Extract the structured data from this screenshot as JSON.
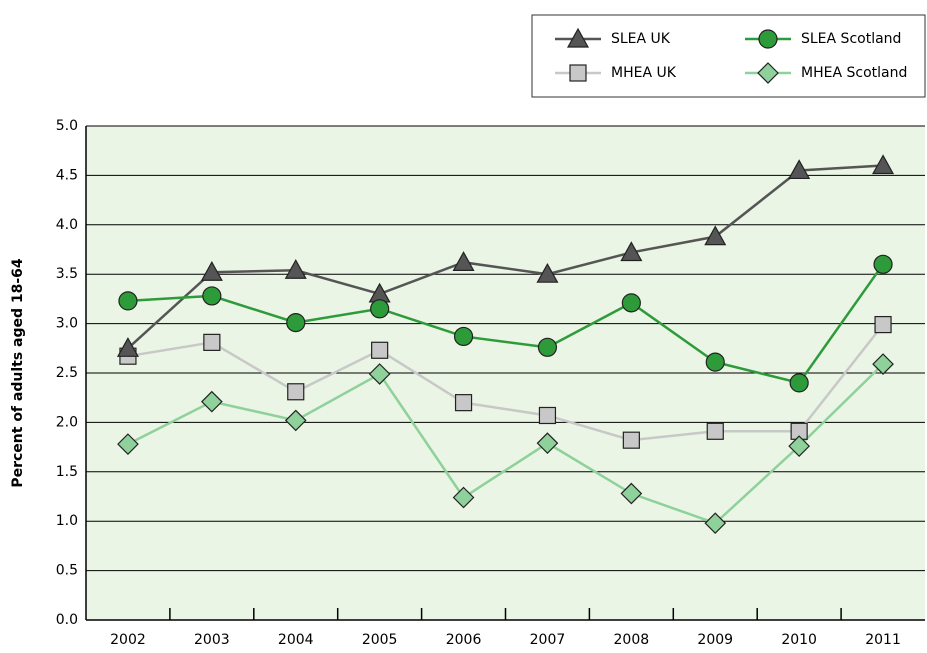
{
  "chart_data": {
    "type": "line",
    "y_label": "Percent of adults aged 18-64",
    "categories": [
      "2002",
      "2003",
      "2004",
      "2005",
      "2006",
      "2007",
      "2008",
      "2009",
      "2010",
      "2011"
    ],
    "series": [
      {
        "name": "SLEA UK",
        "color": "#555555",
        "marker": "triangle",
        "values": [
          2.75,
          3.52,
          3.54,
          3.3,
          3.62,
          3.5,
          3.72,
          3.88,
          4.55,
          4.6
        ]
      },
      {
        "name": "SLEA Scotland",
        "color": "#2e9b3a",
        "marker": "circle",
        "values": [
          3.23,
          3.28,
          3.01,
          3.15,
          2.87,
          2.76,
          3.21,
          2.61,
          2.4,
          3.6
        ]
      },
      {
        "name": "MHEA UK",
        "color": "#c8c8c8",
        "marker": "square",
        "values": [
          2.67,
          2.81,
          2.31,
          2.73,
          2.2,
          2.07,
          1.82,
          1.91,
          1.91,
          2.99
        ]
      },
      {
        "name": "MHEA Scotland",
        "color": "#8ed19a",
        "marker": "diamond",
        "values": [
          1.78,
          2.21,
          2.02,
          2.49,
          1.24,
          1.79,
          1.28,
          0.98,
          1.76,
          2.59
        ]
      }
    ],
    "ylim": [
      0,
      5
    ],
    "yticks": [
      {
        "value": 0,
        "label": "0.0"
      },
      0.5,
      {
        "value": 1,
        "label": "1.0"
      },
      1.5,
      {
        "value": 2,
        "label": "2.0"
      },
      2.5,
      {
        "value": 3,
        "label": "3.0"
      },
      3.5,
      {
        "value": 4,
        "label": "4.0"
      },
      4.5,
      {
        "value": 5,
        "label": "5.0"
      }
    ],
    "grid": true,
    "background": "#eaf5e5"
  }
}
